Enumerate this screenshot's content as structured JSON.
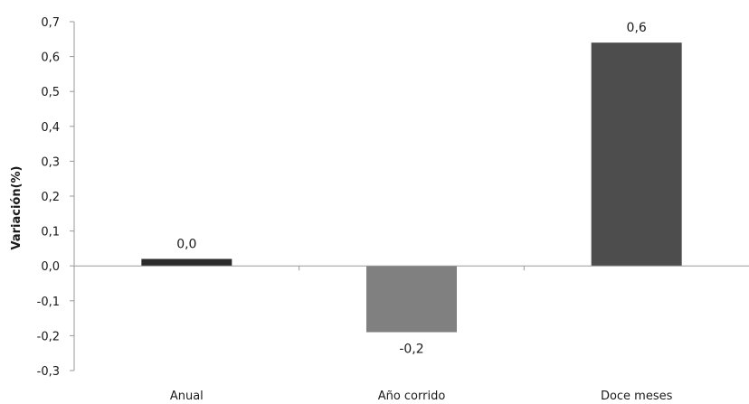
{
  "chart_data": {
    "type": "bar",
    "title": "",
    "xlabel": "",
    "ylabel": "Variación(%)",
    "categories": [
      "Anual",
      "Año corrido",
      "Doce meses"
    ],
    "values": [
      0.02,
      -0.19,
      0.64
    ],
    "data_labels": [
      "0,0",
      "-0,2",
      "0,6"
    ],
    "bar_colors": [
      "#2b2b2b",
      "#808080",
      "#4d4d4d"
    ],
    "ylim": [
      -0.3,
      0.7
    ],
    "yticks": [
      0.7,
      0.6,
      0.5,
      0.4,
      0.3,
      0.2,
      0.1,
      0.0,
      -0.1,
      -0.2,
      -0.3
    ],
    "ytick_labels": [
      "0,7",
      "0,6",
      "0,5",
      "0,4",
      "0,3",
      "0,2",
      "0,1",
      "0,0",
      "-0,1",
      "-0,2",
      "-0,3"
    ],
    "grid": false,
    "legend": "none"
  }
}
